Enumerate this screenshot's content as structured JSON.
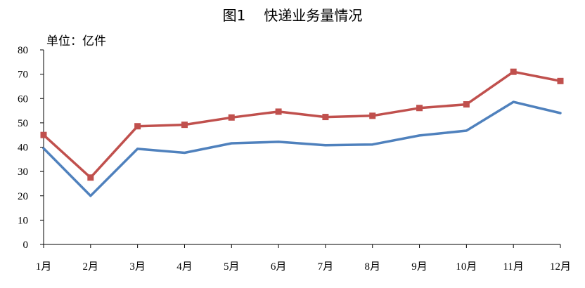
{
  "chart_data": {
    "type": "line",
    "title_prefix": "图1",
    "title": "快递业务量情况",
    "unit": "单位：亿件",
    "categories": [
      "1月",
      "2月",
      "3月",
      "4月",
      "5月",
      "6月",
      "7月",
      "8月",
      "9月",
      "10月",
      "11月",
      "12月"
    ],
    "yticks": [
      "0",
      "10",
      "20",
      "30",
      "40",
      "50",
      "60",
      "70",
      "80"
    ],
    "ylim": [
      0,
      80
    ],
    "grid": false,
    "legend": "none",
    "series": [
      {
        "color": "#4F81BD",
        "marker": "none",
        "values": [
          39.5,
          20.0,
          39.3,
          37.7,
          41.6,
          42.2,
          40.8,
          41.1,
          44.8,
          46.8,
          58.6,
          54.0
        ]
      },
      {
        "color": "#C0504D",
        "marker": "square",
        "values": [
          45.0,
          27.5,
          48.6,
          49.2,
          52.2,
          54.6,
          52.4,
          52.9,
          56.1,
          57.6,
          71.0,
          67.2
        ]
      }
    ]
  }
}
